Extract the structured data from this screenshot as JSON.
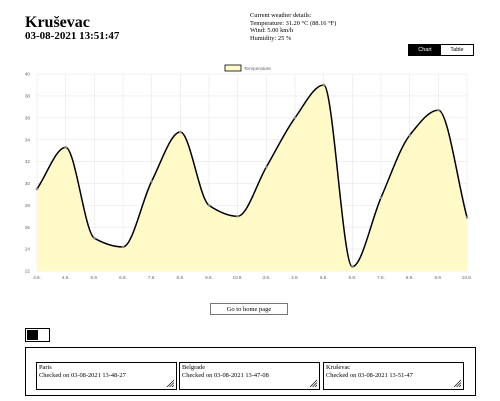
{
  "header": {
    "city": "Kruševac",
    "datetime": "03-08-2021 13:51:47"
  },
  "weather": {
    "heading": "Current weather details:",
    "temperature": "Temperature: 31.20 °C (88.16 °F)",
    "wind": "Wind: 5.00 km/h",
    "humidity": "Humidity: 25 %"
  },
  "view_toggle": {
    "chart_label": "Chart",
    "table_label": "Table",
    "active": "chart"
  },
  "chart_data": {
    "type": "area",
    "legend": "Temperature",
    "legend_position": "top-center",
    "x": [
      "3.8.",
      "4.8.",
      "5.8.",
      "6.8.",
      "7.8.",
      "8.8.",
      "9.8.",
      "10.8.",
      "3.8.",
      "4.8.",
      "5.8.",
      "6.8.",
      "7.8.",
      "8.8.",
      "9.8.",
      "10.8."
    ],
    "values": [
      29.5,
      33.3,
      25.0,
      24.2,
      30.2,
      34.7,
      28.0,
      27.0,
      31.5,
      36.0,
      39.0,
      22.4,
      28.7,
      34.4,
      36.7,
      26.9
    ],
    "yticks": [
      22,
      24,
      26,
      28,
      30,
      32,
      34,
      36,
      38,
      40
    ],
    "ylim": [
      22,
      40
    ],
    "grid": true,
    "line_color": "#000000",
    "fill_color": "#fffac8",
    "point_color": "#888888"
  },
  "home_button": {
    "label": "Go to home page"
  },
  "history": [
    {
      "city": "Paris",
      "checked": "Checked on 03-08-2021 13-48-27"
    },
    {
      "city": "Belgrade",
      "checked": "Checked on 03-08-2021 13-47-08"
    },
    {
      "city": "Kruševac",
      "checked": "Checked on 03-08-2021 13-51-47"
    }
  ]
}
